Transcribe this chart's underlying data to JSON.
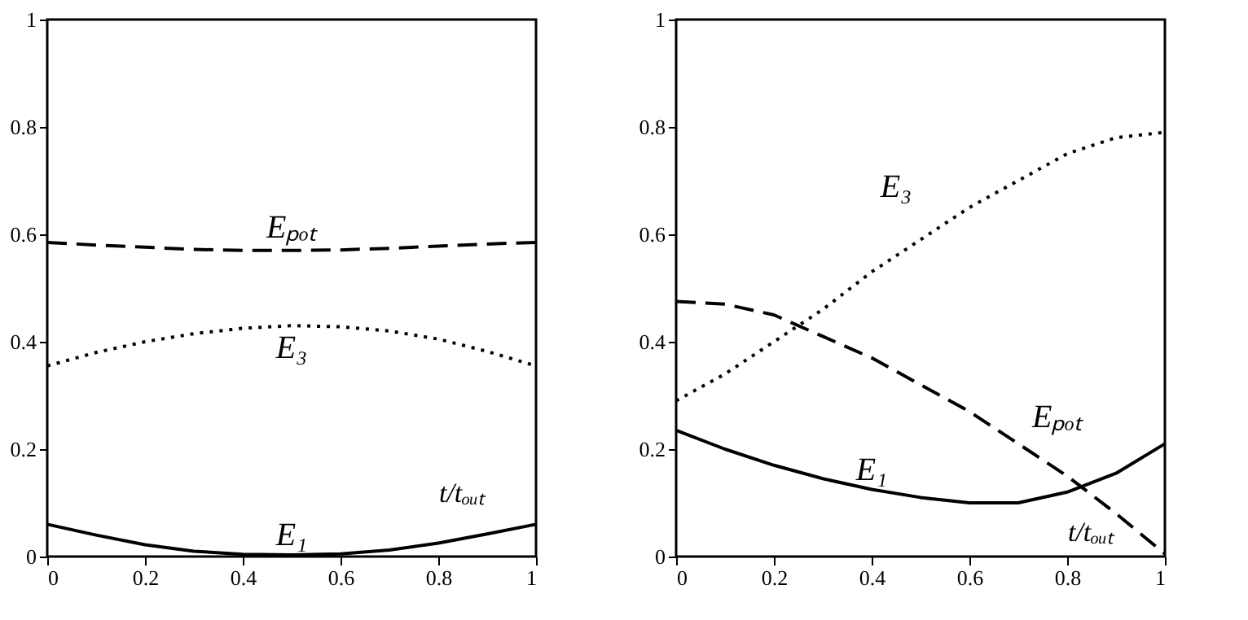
{
  "chart_data": [
    {
      "type": "line",
      "xlabel": "t/tₒᵤₜ",
      "x": [
        0,
        0.1,
        0.2,
        0.3,
        0.4,
        0.5,
        0.6,
        0.7,
        0.8,
        0.9,
        1
      ],
      "xlim": [
        0,
        1
      ],
      "ylim": [
        0,
        1
      ],
      "xticks": [
        0,
        0.2,
        0.4,
        0.6,
        0.8,
        1
      ],
      "yticks": [
        0,
        0.2,
        0.4,
        0.6,
        0.8,
        1
      ],
      "grid": false,
      "marker": "none",
      "series": [
        {
          "name": "Eₚₒₜ",
          "color": "#000000",
          "line_style": "dashed",
          "values": [
            0.585,
            0.58,
            0.576,
            0.572,
            0.57,
            0.57,
            0.571,
            0.574,
            0.578,
            0.582,
            0.585
          ]
        },
        {
          "name": "E₃",
          "color": "#000000",
          "line_style": "dotted",
          "values": [
            0.355,
            0.38,
            0.4,
            0.415,
            0.425,
            0.43,
            0.428,
            0.42,
            0.405,
            0.382,
            0.355
          ]
        },
        {
          "name": "E₁",
          "color": "#000000",
          "line_style": "solid",
          "values": [
            0.06,
            0.04,
            0.022,
            0.01,
            0.004,
            0.003,
            0.005,
            0.012,
            0.025,
            0.042,
            0.06
          ]
        }
      ]
    },
    {
      "type": "line",
      "xlabel": "t/tₒᵤₜ",
      "x": [
        0,
        0.1,
        0.2,
        0.3,
        0.4,
        0.5,
        0.6,
        0.7,
        0.8,
        0.9,
        1
      ],
      "xlim": [
        0,
        1
      ],
      "ylim": [
        0,
        1
      ],
      "xticks": [
        0,
        0.2,
        0.4,
        0.6,
        0.8,
        1
      ],
      "yticks": [
        0,
        0.2,
        0.4,
        0.6,
        0.8,
        1
      ],
      "grid": false,
      "marker": "none",
      "series": [
        {
          "name": "E₃",
          "color": "#000000",
          "line_style": "dotted",
          "values": [
            0.29,
            0.34,
            0.4,
            0.46,
            0.53,
            0.59,
            0.65,
            0.7,
            0.75,
            0.78,
            0.79
          ]
        },
        {
          "name": "Eₚₒₜ",
          "color": "#000000",
          "line_style": "dashed",
          "values": [
            0.475,
            0.47,
            0.45,
            0.41,
            0.37,
            0.32,
            0.27,
            0.21,
            0.15,
            0.08,
            0.005
          ]
        },
        {
          "name": "E₁",
          "color": "#000000",
          "line_style": "solid",
          "values": [
            0.235,
            0.2,
            0.17,
            0.145,
            0.125,
            0.11,
            0.1,
            0.1,
            0.12,
            0.155,
            0.21
          ]
        }
      ]
    }
  ]
}
